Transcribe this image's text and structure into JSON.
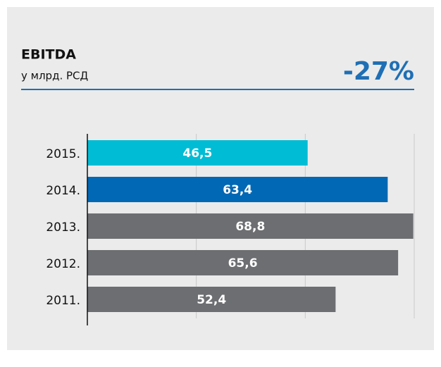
{
  "chart_data": {
    "type": "bar",
    "orientation": "horizontal",
    "title": "EBITDA",
    "subtitle": "у млрд. РСД",
    "annotation": "-27%",
    "categories": [
      "2015.",
      "2014.",
      "2013.",
      "2012.",
      "2011."
    ],
    "values": [
      46.5,
      63.4,
      68.8,
      65.6,
      52.4
    ],
    "value_labels": [
      "46,5",
      "63,4",
      "68,8",
      "65,6",
      "52,4"
    ],
    "colors": [
      "#00bcd4",
      "#0068b4",
      "#6d6e71",
      "#6d6e71",
      "#6d6e71"
    ],
    "xlim": [
      0,
      69
    ],
    "xticks": [
      0,
      23,
      46,
      69
    ],
    "grid": true
  }
}
